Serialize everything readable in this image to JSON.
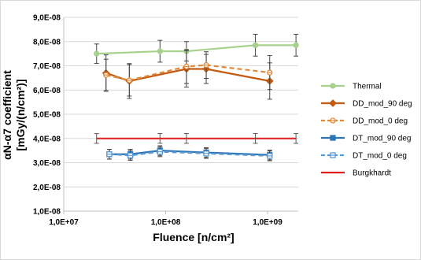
{
  "chart_data": {
    "type": "line",
    "xlabel": "Fluence [n/cm²]",
    "ylabel_line1": "αN-α7 coefficient",
    "ylabel_line2": "[mGy/(n/cm²)]",
    "x_scale": "log",
    "xlim": [
      10000000,
      2000000000
    ],
    "ylim": [
      1e-08,
      9e-08
    ],
    "x_ticks": [
      {
        "value": 10000000,
        "label": "1,0E+07"
      },
      {
        "value": 100000000,
        "label": "1,0E+08"
      },
      {
        "value": 1000000000,
        "label": "1,0E+09"
      }
    ],
    "y_ticks": [
      {
        "value": 1e-08,
        "label": "1,0E-08"
      },
      {
        "value": 2e-08,
        "label": "2,0E-08"
      },
      {
        "value": 3e-08,
        "label": "3,0E-08"
      },
      {
        "value": 4e-08,
        "label": "4,0E-08"
      },
      {
        "value": 5e-08,
        "label": "5,0E-08"
      },
      {
        "value": 6e-08,
        "label": "6,0E-08"
      },
      {
        "value": 7e-08,
        "label": "7,0E-08"
      },
      {
        "value": 8e-08,
        "label": "8,0E-08"
      },
      {
        "value": 9e-08,
        "label": "9,0E-08"
      }
    ],
    "grid": "horizontal",
    "legend_position": "right",
    "series": [
      {
        "name": "Thermal",
        "color": "#a9d18e",
        "marker": "circle",
        "dashed": false,
        "hollow": false,
        "x": [
          21000000,
          88000000,
          160000000,
          760000000,
          1900000000
        ],
        "y": [
          7.5e-08,
          7.6e-08,
          7.6e-08,
          7.85e-08,
          7.85e-08
        ],
        "err": [
          4e-09,
          4.5e-09,
          4e-09,
          4.5e-09,
          4.5e-09
        ]
      },
      {
        "name": "DD_mod_90 deg",
        "color": "#c55a11",
        "marker": "diamond",
        "dashed": false,
        "hollow": false,
        "x": [
          26000000,
          44000000,
          160000000,
          250000000,
          1050000000
        ],
        "y": [
          6.7e-08,
          6.37e-08,
          6.87e-08,
          6.87e-08,
          6.37e-08
        ],
        "err": [
          7.5e-09,
          7.2e-09,
          7.5e-09,
          6e-09,
          7.5e-09
        ]
      },
      {
        "name": "DD_mod_0 deg",
        "color": "#e08a3c",
        "marker": "circle",
        "dashed": true,
        "hollow": true,
        "x": [
          26000000,
          44000000,
          160000000,
          250000000,
          1050000000
        ],
        "y": [
          6.62e-08,
          6.4e-08,
          6.97e-08,
          7.03e-08,
          6.72e-08
        ],
        "err": [
          6.5e-09,
          6.5e-09,
          7e-09,
          5.5e-09,
          7e-09
        ]
      },
      {
        "name": "DT_mod_90 deg",
        "color": "#2e75b6",
        "marker": "square",
        "dashed": false,
        "hollow": false,
        "x": [
          28000000,
          45000000,
          88000000,
          250000000,
          1050000000
        ],
        "y": [
          3.35e-08,
          3.35e-08,
          3.5e-08,
          3.42e-08,
          3.32e-08
        ],
        "err": [
          2e-09,
          2e-09,
          2e-09,
          2e-09,
          2e-09
        ]
      },
      {
        "name": "DT_mod_0 deg",
        "color": "#5b9bd5",
        "marker": "square",
        "dashed": true,
        "hollow": true,
        "x": [
          28000000,
          45000000,
          88000000,
          250000000,
          1050000000
        ],
        "y": [
          3.35e-08,
          3.3e-08,
          3.45e-08,
          3.38e-08,
          3.28e-08
        ],
        "err": [
          2e-09,
          2e-09,
          2e-09,
          2e-09,
          2e-09
        ]
      },
      {
        "name": "Burgkhardt",
        "color": "#e02020",
        "marker": "none",
        "dashed": false,
        "hollow": false,
        "x": [
          21000000,
          88000000,
          160000000,
          760000000,
          1900000000
        ],
        "y": [
          4e-08,
          4e-08,
          4e-08,
          4e-08,
          4e-08
        ],
        "err": [
          2e-09,
          2e-09,
          2e-09,
          2e-09,
          2e-09
        ]
      }
    ]
  }
}
